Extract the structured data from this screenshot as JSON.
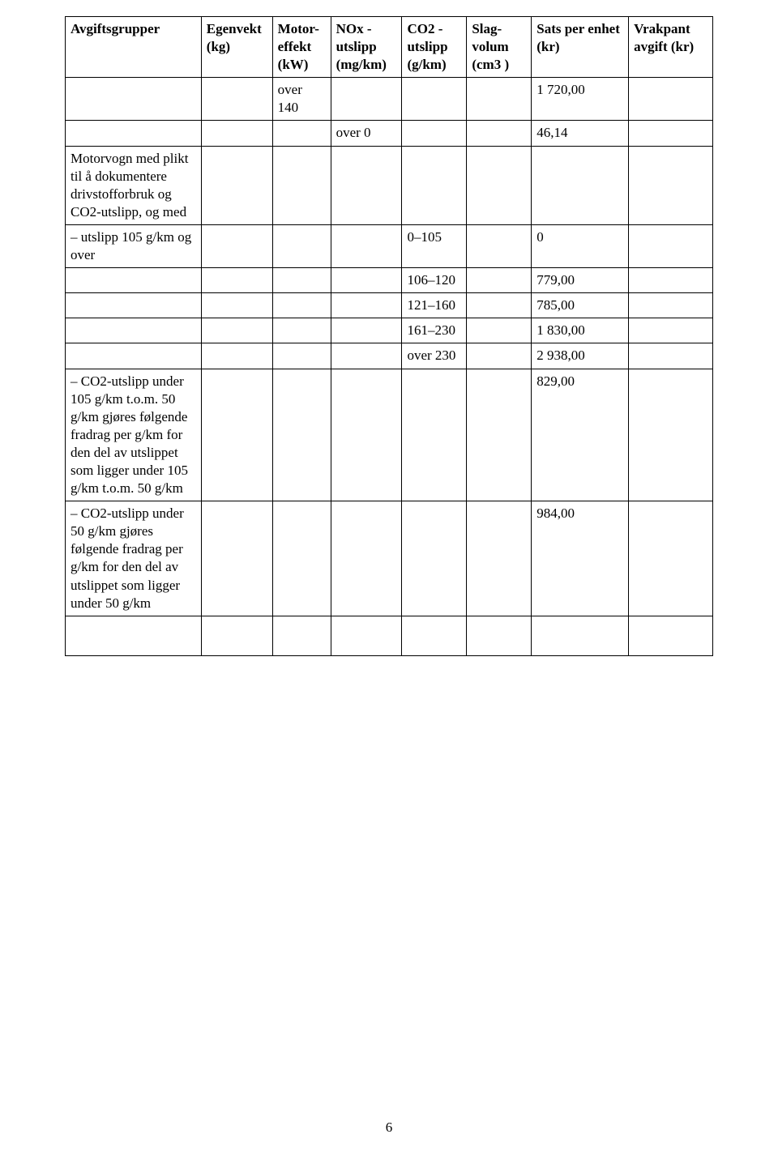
{
  "headers": {
    "c1": "Avgiftsgrupper",
    "c2": "Egenvekt (kg)",
    "c3": "Motor-effekt (kW)",
    "c4": "NOx - utslipp (mg/km)",
    "c5": "CO2 - utslipp (g/km)",
    "c6": "Slag-volum (cm3 )",
    "c7": "Sats per enhet (kr)",
    "c8": "Vrakpant avgift (kr)"
  },
  "rows": {
    "r1": {
      "c3": "over 140",
      "c7": "1 720,00"
    },
    "r2": {
      "c4": "over 0",
      "c7": "46,14"
    },
    "r3": {
      "c1": "Motorvogn med plikt til å dokumentere drivstofforbruk og CO2-utslipp, og med"
    },
    "r4": {
      "c1": "– utslipp 105 g/km og over",
      "c5": "0–105",
      "c7": "0"
    },
    "r5": {
      "c5": "106–120",
      "c7": "779,00"
    },
    "r6": {
      "c5": "121–160",
      "c7": "785,00"
    },
    "r7": {
      "c5": "161–230",
      "c7": "1 830,00"
    },
    "r8": {
      "c5": "over 230",
      "c7": "2 938,00"
    },
    "r9": {
      "c1": "– CO2-utslipp under 105 g/km t.o.m. 50 g/km gjøres følgende fradrag per g/km for den del av utslippet som ligger under 105 g/km t.o.m. 50 g/km",
      "c7": "829,00"
    },
    "r10": {
      "c1": "– CO2-utslipp under 50 g/km gjøres følgende fradrag per g/km for den del av utslippet som ligger under 50 g/km",
      "c7": "984,00"
    }
  },
  "page_number": "6"
}
